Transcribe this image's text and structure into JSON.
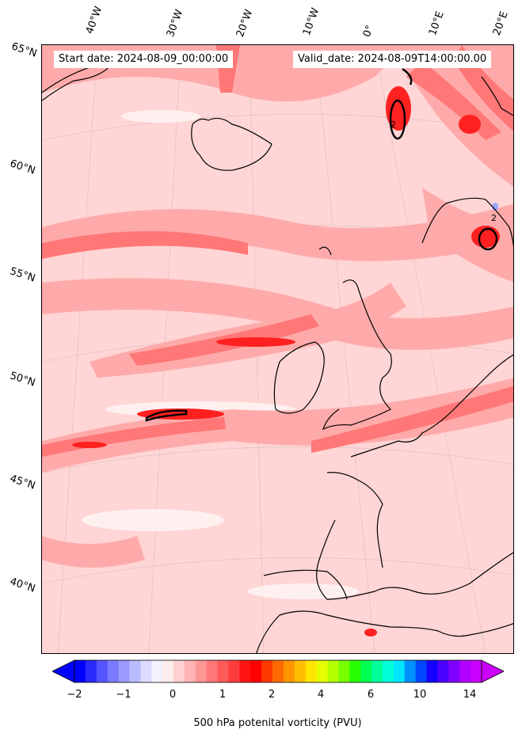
{
  "header": {
    "start_date": "Start date: 2024-08-09_00:00:00",
    "valid_date": "Valid_date: 2024-08-09T14:00:00.00"
  },
  "axes": {
    "lon_labels": [
      "40°W",
      "30°W",
      "20°W",
      "10°W",
      "0°",
      "10°E",
      "20°E"
    ],
    "lat_labels": [
      "65°N",
      "60°N",
      "55°N",
      "50°N",
      "45°N",
      "40°N"
    ]
  },
  "field": {
    "variable": "500 hPa potential vorticity",
    "contour_label": "2",
    "colors": {
      "background_pv": "#ffd5d5",
      "pv_1": "#ffaaaa",
      "pv_1_5": "#ff7777",
      "pv_2": "#ff2020",
      "negative": "#9aa6ff",
      "low": "#fff0f0"
    }
  },
  "colorbar": {
    "label": "500 hPa potenital vorticity (PVU)",
    "ticks": [
      "−2",
      "−1",
      "0",
      "1",
      "2",
      "4",
      "6",
      "10",
      "14"
    ],
    "colors": [
      "#0000ff",
      "#2a2aff",
      "#5555ff",
      "#7a7aff",
      "#9a9aff",
      "#babaff",
      "#dcdcff",
      "#f2f2ff",
      "#ffecec",
      "#ffd0d0",
      "#ffb3b3",
      "#ff9696",
      "#ff7878",
      "#ff5a5a",
      "#ff3c3c",
      "#ff1414",
      "#ff0000",
      "#ff3a00",
      "#ff6a00",
      "#ff9600",
      "#ffbe00",
      "#ffe600",
      "#e6ff00",
      "#b4ff00",
      "#78ff00",
      "#28ff00",
      "#00ff50",
      "#00ff9a",
      "#00ffd8",
      "#00e6ff",
      "#0090ff",
      "#0046ff",
      "#1400ff",
      "#4a00ff",
      "#8000ff",
      "#b000ff",
      "#cc00ff"
    ]
  }
}
